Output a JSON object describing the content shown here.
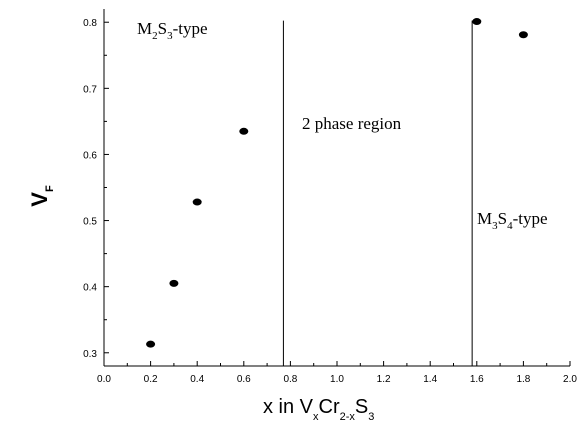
{
  "chart_data": {
    "type": "scatter",
    "xlabel": {
      "main": "x in V",
      "parts": [
        [
          "x",
          "sub"
        ],
        [
          "Cr",
          "main"
        ],
        [
          "2-x",
          "sub"
        ],
        [
          "S",
          "main"
        ],
        [
          "3",
          "sub"
        ]
      ]
    },
    "ylabel": {
      "main": "V",
      "sub": "F"
    },
    "xlim": [
      0.0,
      2.0
    ],
    "ylim": [
      0.28,
      0.82
    ],
    "x_ticks": [
      "0.0",
      "0.2",
      "0.4",
      "0.6",
      "0.8",
      "1.0",
      "1.2",
      "1.4",
      "1.6",
      "1.8",
      "2.0"
    ],
    "y_ticks": [
      "0.3",
      "0.4",
      "0.5",
      "0.6",
      "0.7",
      "0.8"
    ],
    "grid": false,
    "series": [
      {
        "points": [
          {
            "x": 0.2,
            "y": 0.313
          },
          {
            "x": 0.3,
            "y": 0.405
          },
          {
            "x": 0.4,
            "y": 0.528
          },
          {
            "x": 0.6,
            "y": 0.635
          },
          {
            "x": 1.6,
            "y": 0.801
          },
          {
            "x": 1.8,
            "y": 0.781
          }
        ]
      }
    ],
    "vertical_lines": [
      0.77,
      1.58
    ],
    "annotations": {
      "left_region": {
        "parts": [
          [
            "M",
            "main"
          ],
          [
            "2",
            "sub"
          ],
          [
            "S",
            "main"
          ],
          [
            "3",
            "sub"
          ],
          [
            "-type",
            "main"
          ]
        ]
      },
      "middle_region": {
        "text": "2 phase region"
      },
      "right_region": {
        "parts": [
          [
            "M",
            "main"
          ],
          [
            "3",
            "sub"
          ],
          [
            "S",
            "main"
          ],
          [
            "4",
            "sub"
          ],
          [
            "-type",
            "main"
          ]
        ]
      }
    }
  }
}
